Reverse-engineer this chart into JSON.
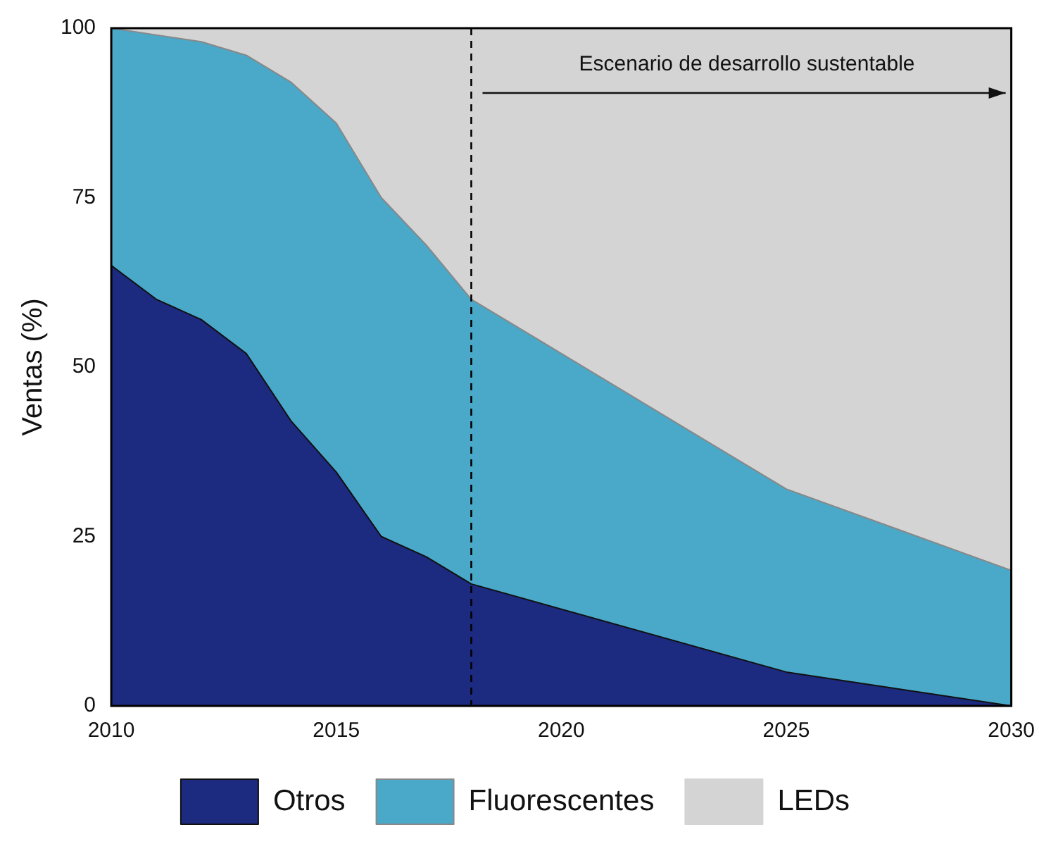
{
  "chart_data": {
    "type": "area",
    "ylabel": "Ventas (%)",
    "stacked": true,
    "legend": "bottom",
    "x": [
      2010,
      2011,
      2012,
      2013,
      2014,
      2015,
      2016,
      2017,
      2018,
      2025,
      2030
    ],
    "series": [
      {
        "name": "Otros",
        "color": "#1c2a80",
        "values": [
          65,
          60,
          57,
          52,
          42,
          34.5,
          25,
          22,
          18,
          5,
          0
        ]
      },
      {
        "name": "Fluorescentes",
        "color": "#4aa8c8",
        "values": [
          35,
          39,
          41,
          44,
          50,
          51.5,
          50,
          46,
          42,
          27,
          20
        ]
      },
      {
        "name": "LEDs",
        "color": "#d4d4d4",
        "values": [
          0,
          1,
          2,
          4,
          8,
          14,
          25,
          32,
          40,
          68,
          80
        ]
      }
    ],
    "xlim": [
      2010,
      2030
    ],
    "ylim": [
      0,
      100
    ],
    "xticks": [
      2010,
      2015,
      2020,
      2025,
      2030
    ],
    "yticks": [
      0,
      25,
      50,
      75,
      100
    ],
    "ref_lines": [
      {
        "axis": "x",
        "value": 2018,
        "line_style": "dashed",
        "color": "#000000"
      }
    ],
    "annotations": [
      "Escenario de desarrollo sustentable"
    ]
  }
}
